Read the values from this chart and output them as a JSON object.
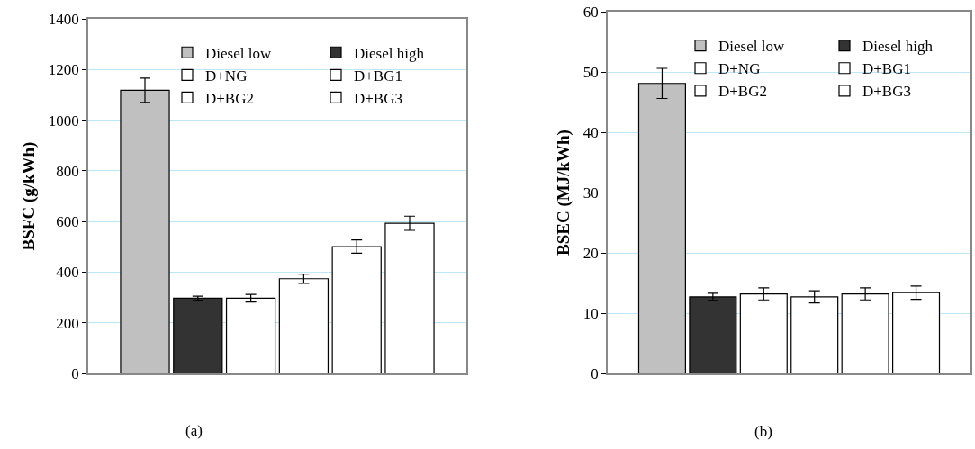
{
  "chart_data": [
    {
      "type": "bar",
      "categories": [
        null
      ],
      "ylabel": "BSFC (g/kWh)",
      "ylim": [
        0,
        1400
      ],
      "yticks": [
        0,
        200,
        400,
        600,
        800,
        1000,
        1200,
        1400
      ],
      "grid": "y",
      "legend": "top right",
      "annotations": [
        "(a)"
      ],
      "series": [
        {
          "name": "Diesel low",
          "color": "#c0c0c0",
          "values": [
            1118
          ],
          "errors": [
            48
          ]
        },
        {
          "name": "Diesel high",
          "color": "#333333",
          "values": [
            297
          ],
          "errors": [
            8
          ]
        },
        {
          "name": "D+NG",
          "color": "#ffffff",
          "values": [
            297
          ],
          "errors": [
            15
          ]
        },
        {
          "name": "D+BG1",
          "color": "#ffffff",
          "values": [
            374
          ],
          "errors": [
            18
          ]
        },
        {
          "name": "D+BG2",
          "color": "#ffffff",
          "values": [
            501
          ],
          "errors": [
            26
          ]
        },
        {
          "name": "D+BG3",
          "color": "#ffffff",
          "values": [
            593
          ],
          "errors": [
            28
          ]
        }
      ]
    },
    {
      "type": "bar",
      "categories": [
        null
      ],
      "ylabel": "BSEC (MJ/kWh)",
      "ylim": [
        0,
        60
      ],
      "yticks": [
        0,
        10,
        20,
        30,
        40,
        50,
        60
      ],
      "grid": "y",
      "legend": "top right",
      "annotations": [
        "(b)"
      ],
      "series": [
        {
          "name": "Diesel low",
          "color": "#c0c0c0",
          "values": [
            48.1
          ],
          "errors": [
            2.5
          ]
        },
        {
          "name": "Diesel high",
          "color": "#333333",
          "values": [
            12.7
          ],
          "errors": [
            0.6
          ]
        },
        {
          "name": "D+NG",
          "color": "#ffffff",
          "values": [
            13.2
          ],
          "errors": [
            1.0
          ]
        },
        {
          "name": "D+BG1",
          "color": "#ffffff",
          "values": [
            12.7
          ],
          "errors": [
            1.0
          ]
        },
        {
          "name": "D+BG2",
          "color": "#ffffff",
          "values": [
            13.2
          ],
          "errors": [
            1.0
          ]
        },
        {
          "name": "D+BG3",
          "color": "#ffffff",
          "values": [
            13.4
          ],
          "errors": [
            1.1
          ]
        }
      ]
    }
  ]
}
